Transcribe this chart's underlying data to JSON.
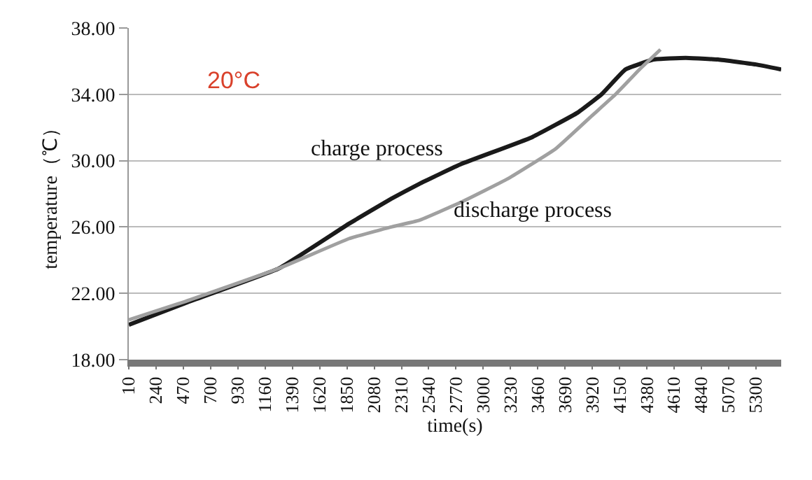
{
  "chart_data": {
    "type": "line",
    "xlabel": "time(s)",
    "ylabel": "temperature（℃）",
    "annotations": [
      "20°C"
    ],
    "series": [
      {
        "name": "charge process",
        "color": "#1a1a1a",
        "x": [
          10,
          483,
          1276,
          1868,
          2223,
          2460,
          2815,
          3407,
          3797,
          3998,
          4199,
          4436,
          4708,
          4980,
          5300,
          5513
        ],
        "values": [
          20.1,
          21.4,
          23.5,
          26.2,
          27.7,
          28.6,
          29.8,
          31.4,
          32.9,
          34.0,
          35.5,
          36.1,
          36.2,
          36.1,
          35.8,
          35.5
        ]
      },
      {
        "name": "discharge process",
        "color": "#a0a0a0",
        "x": [
          10,
          483,
          1276,
          1868,
          2223,
          2460,
          2815,
          3205,
          3608,
          3915,
          4116,
          4318,
          4495
        ],
        "values": [
          20.4,
          21.5,
          23.5,
          25.3,
          26.0,
          26.4,
          27.5,
          28.9,
          30.7,
          32.7,
          34.0,
          35.5,
          36.7
        ]
      }
    ],
    "xlim": [
      10,
      5513
    ],
    "xticks": [
      10,
      240,
      470,
      700,
      930,
      1160,
      1390,
      1620,
      1850,
      2080,
      2310,
      2540,
      2770,
      3000,
      3230,
      3460,
      3690,
      3920,
      4150,
      4380,
      4610,
      4840,
      5070,
      5300
    ],
    "ylim": [
      18,
      38
    ],
    "yticks": [
      {
        "value": 18,
        "label": "18.00"
      },
      {
        "value": 22,
        "label": "22.00"
      },
      {
        "value": 26,
        "label": "26.00"
      },
      {
        "value": 30,
        "label": "30.00"
      },
      {
        "value": 34,
        "label": "34.00"
      },
      {
        "value": 38,
        "label": "38.00"
      }
    ],
    "grid": "y",
    "legend": false,
    "marker": "none",
    "line_style": "solid"
  }
}
